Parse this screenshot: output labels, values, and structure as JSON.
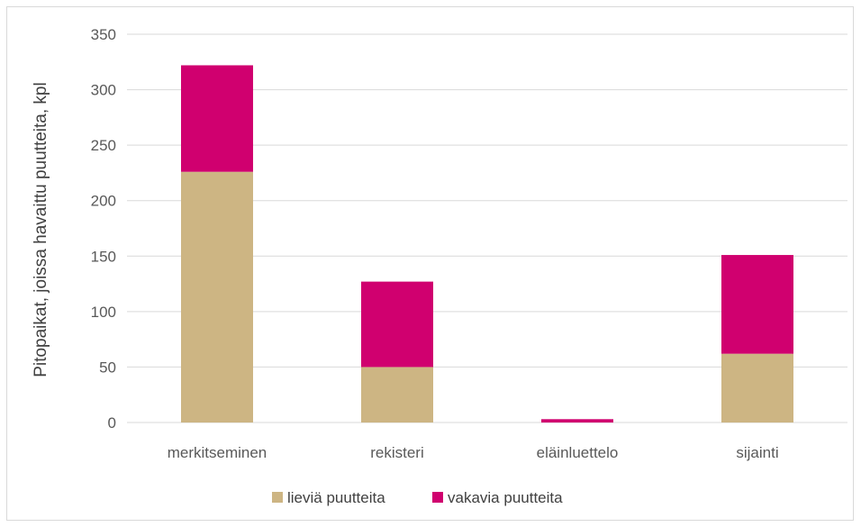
{
  "chart_data": {
    "type": "bar",
    "stacked": true,
    "categories": [
      "merkitseminen",
      "rekisteri",
      "eläinluettelo",
      "sijainti"
    ],
    "series": [
      {
        "name": "lieviä puutteita",
        "values": [
          226,
          50,
          0,
          62
        ],
        "color": "#cdb583"
      },
      {
        "name": "vakavia puutteita",
        "values": [
          96,
          77,
          3,
          89
        ],
        "color": "#d0006f"
      }
    ],
    "ylabel": "Pitopaikat, joissa havaittu puutteita, kpl",
    "xlabel": "",
    "title": "",
    "ylim": [
      0,
      350
    ],
    "yticks": [
      0,
      50,
      100,
      150,
      200,
      250,
      300,
      350
    ],
    "grid": true,
    "gridline_color": "#d9d9d9",
    "legend_position": "bottom"
  }
}
